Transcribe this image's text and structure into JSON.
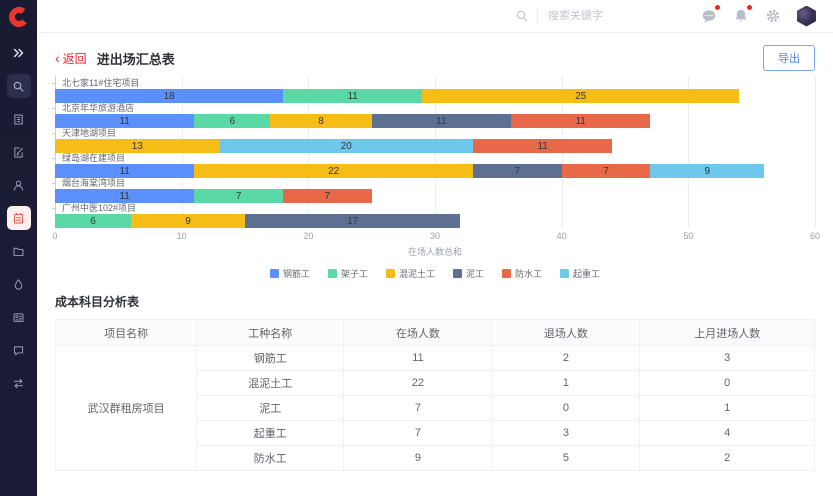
{
  "app": {
    "logo_letter": "C",
    "colors": {
      "sidebar_bg": "#1b1d39",
      "active_red": "#dd5449",
      "link_red": "#f5222d",
      "export_blue": "#4a87f5"
    }
  },
  "sidebar": {
    "icons": [
      "double-chevron-right-icon",
      "search-icon",
      "building-icon",
      "form-edit-icon",
      "user-icon",
      "report-icon",
      "folder-icon",
      "water-drop-icon",
      "id-card-icon",
      "chat-icon",
      "transfer-icon"
    ],
    "active_icon": "report-icon"
  },
  "topbar": {
    "search_placeholder": "搜索关键字",
    "icons": [
      "message-icon",
      "bell-icon",
      "gear-icon"
    ],
    "message_badge": true,
    "bell_badge": true
  },
  "page": {
    "back_label": "返回",
    "back_chevron": "‹",
    "title": "进出场汇总表",
    "export_label": "导出"
  },
  "chart_data": {
    "type": "bar",
    "orientation": "horizontal",
    "stacked": true,
    "title": "",
    "xlabel": "在场人数总和",
    "ylabel": "",
    "xlim": [
      0,
      60
    ],
    "xticks": [
      0,
      10,
      20,
      30,
      40,
      50,
      60
    ],
    "grid": true,
    "legend_position": "bottom",
    "legend": [
      "钢筋工",
      "架子工",
      "混泥土工",
      "泥工",
      "防水工",
      "起重工"
    ],
    "series_colors": {
      "钢筋工": "#5B8FF9",
      "架子工": "#5AD8A6",
      "混泥土工": "#F6BD16",
      "泥工": "#5D7092",
      "防水工": "#E8684A",
      "起重工": "#6DC8EC"
    },
    "bars": [
      {
        "label": "北七家11#住宅项目",
        "segments": [
          {
            "series": "钢筋工",
            "value": 18
          },
          {
            "series": "架子工",
            "value": 11
          },
          {
            "series": "混泥土工",
            "value": 25
          }
        ]
      },
      {
        "label": "北京年华旅游酒店",
        "segments": [
          {
            "series": "钢筋工",
            "value": 11
          },
          {
            "series": "架子工",
            "value": 6
          },
          {
            "series": "混泥土工",
            "value": 8
          },
          {
            "series": "泥工",
            "value": 11
          },
          {
            "series": "防水工",
            "value": 11
          }
        ]
      },
      {
        "label": "天津地湖项目",
        "segments": [
          {
            "series": "混泥土工",
            "value": 13
          },
          {
            "series": "起重工",
            "value": 20
          },
          {
            "series": "防水工",
            "value": 11
          }
        ]
      },
      {
        "label": "绿岛湖在建项目",
        "segments": [
          {
            "series": "钢筋工",
            "value": 11
          },
          {
            "series": "混泥土工",
            "value": 22
          },
          {
            "series": "泥工",
            "value": 7
          },
          {
            "series": "防水工",
            "value": 7
          },
          {
            "series": "起重工",
            "value": 9
          }
        ]
      },
      {
        "label": "烟台海棠湾项目",
        "segments": [
          {
            "series": "钢筋工",
            "value": 11
          },
          {
            "series": "架子工",
            "value": 7
          },
          {
            "series": "防水工",
            "value": 7
          }
        ]
      },
      {
        "label": "广州中医102#项目",
        "segments": [
          {
            "series": "架子工",
            "value": 6
          },
          {
            "series": "混泥土工",
            "value": 9
          },
          {
            "series": "泥工",
            "value": 17
          }
        ]
      }
    ]
  },
  "table": {
    "title": "成本科目分析表",
    "headers": [
      "项目名称",
      "工种名称",
      "在场人数",
      "退场人数",
      "上月进场人数"
    ],
    "col_widths": [
      "18.6%",
      "19.4%",
      "19.5%",
      "19.5%",
      "23%"
    ],
    "groups": [
      {
        "project": "武汉群租房项目",
        "rows": [
          {
            "worker": "钢筋工",
            "onsite": "11",
            "exited": "2",
            "last_month_entered": "3"
          },
          {
            "worker": "混泥土工",
            "onsite": "22",
            "exited": "1",
            "last_month_entered": "0"
          },
          {
            "worker": "泥工",
            "onsite": "7",
            "exited": "0",
            "last_month_entered": "1"
          },
          {
            "worker": "起重工",
            "onsite": "7",
            "exited": "3",
            "last_month_entered": "4"
          },
          {
            "worker": "防水工",
            "onsite": "9",
            "exited": "5",
            "last_month_entered": "2"
          }
        ]
      }
    ]
  }
}
